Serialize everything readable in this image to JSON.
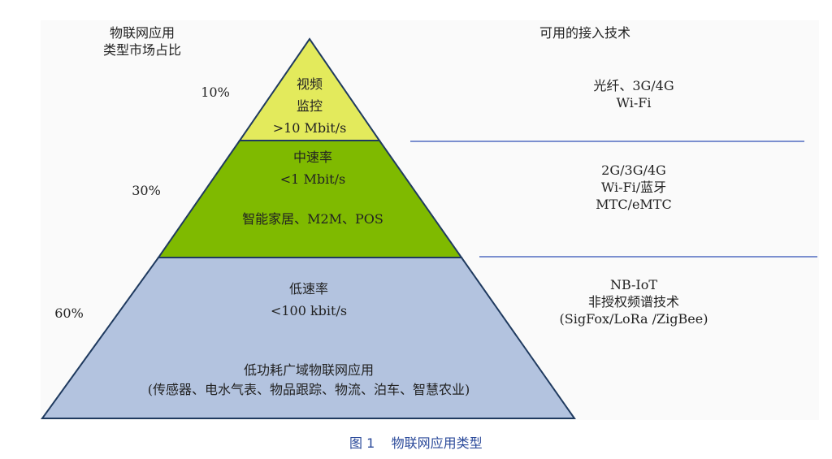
{
  "left_header": [
    "物联网应用",
    "类型市场占比"
  ],
  "right_header": "可用的接入技术",
  "tiers": [
    {
      "share": "10%",
      "lines": [
        "视频",
        "监控",
        ">10 Mbit/s"
      ],
      "apps": "",
      "tech": [
        "光纤、3G/4G",
        "Wi-Fi"
      ],
      "color": "#e3ea5c"
    },
    {
      "share": "30%",
      "lines": [
        "中速率",
        "<1 Mbit/s"
      ],
      "apps": "智能家居、M2M、POS",
      "tech": [
        "2G/3G/4G",
        "Wi-Fi/蓝牙",
        "MTC/eMTC"
      ],
      "color": "#7fba00"
    },
    {
      "share": "60%",
      "lines": [
        "低速率",
        "<100 kbit/s"
      ],
      "apps": "低功耗广域物联网应用",
      "apps2": "(传感器、电水气表、物品跟踪、物流、泊车、智慧农业)",
      "tech": [
        "NB-IoT",
        "非授权频谱技术",
        "(SigFox/LoRa /ZigBee)"
      ],
      "color": "#b3c3df"
    }
  ],
  "caption": "图 1    物联网应用类型",
  "colors": {
    "outline": "#1f3a5f",
    "divider": "#7b8fcf",
    "caption": "#2b4a9a"
  }
}
